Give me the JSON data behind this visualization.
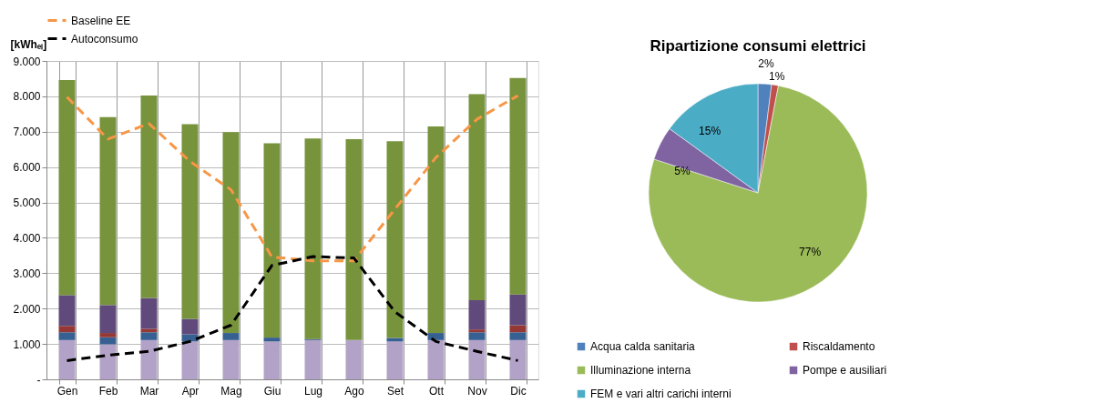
{
  "chart_data": [
    {
      "type": "bar",
      "stacked": true,
      "ylabel": "[kWhₑₗ]",
      "categories": [
        "Gen",
        "Feb",
        "Mar",
        "Apr",
        "Mag",
        "Giu",
        "Lug",
        "Ago",
        "Set",
        "Ott",
        "Nov",
        "Dic"
      ],
      "series": [
        {
          "color": "#b3a2c7",
          "values": [
            1110,
            990,
            1110,
            1070,
            1110,
            1070,
            1110,
            1110,
            1070,
            1110,
            1110,
            1110
          ]
        },
        {
          "color": "#376092",
          "values": [
            220,
            200,
            220,
            200,
            200,
            110,
            30,
            0,
            100,
            200,
            220,
            220
          ]
        },
        {
          "color": "#953735",
          "values": [
            180,
            120,
            100,
            0,
            0,
            0,
            0,
            0,
            0,
            0,
            80,
            200
          ]
        },
        {
          "color": "#604a7b",
          "values": [
            870,
            790,
            870,
            440,
            0,
            0,
            0,
            0,
            0,
            0,
            830,
            870
          ]
        },
        {
          "color": "#77933c",
          "values": [
            6080,
            5310,
            5720,
            5500,
            5680,
            5490,
            5670,
            5680,
            5560,
            5840,
            5820,
            6120
          ]
        },
        {
          "type": "line",
          "name": "Baseline EE",
          "color": "#f79646",
          "line_style": "dashed",
          "values": [
            7980,
            6790,
            7230,
            6160,
            5360,
            3460,
            3350,
            3350,
            4810,
            6270,
            7350,
            8020
          ]
        },
        {
          "type": "line",
          "name": "Autoconsumo",
          "color": "#000000",
          "line_style": "dashed",
          "values": [
            530,
            680,
            790,
            1070,
            1530,
            3220,
            3470,
            3430,
            1910,
            1070,
            790,
            530
          ]
        }
      ],
      "ylim": [
        0,
        9000
      ],
      "yticks": [
        {
          "value": 0,
          "label": "-"
        },
        {
          "value": 1000,
          "label": "1.000"
        },
        {
          "value": 2000,
          "label": "2.000"
        },
        {
          "value": 3000,
          "label": "3.000"
        },
        {
          "value": 4000,
          "label": "4.000"
        },
        {
          "value": 5000,
          "label": "5.000"
        },
        {
          "value": 6000,
          "label": "6.000"
        },
        {
          "value": 7000,
          "label": "7.000"
        },
        {
          "value": 8000,
          "label": "8.000"
        },
        {
          "value": 9000,
          "label": "9.000"
        }
      ],
      "grid": true,
      "legend": "top"
    },
    {
      "type": "pie",
      "title": "Ripartizione consumi elettrici",
      "categories": [
        "Acqua calda sanitaria",
        "Riscaldamento",
        "Illuminazione interna",
        "Pompe e ausiliari",
        "FEM e vari altri carichi interni"
      ],
      "values": [
        2,
        1,
        77,
        5,
        15
      ],
      "colors": [
        "#4f81bd",
        "#c0504d",
        "#9bbb59",
        "#8064a2",
        "#4bacc6"
      ],
      "value_labels": [
        "2%",
        "1%",
        "77%",
        "5%",
        "15%"
      ],
      "legend": "bottom"
    }
  ]
}
